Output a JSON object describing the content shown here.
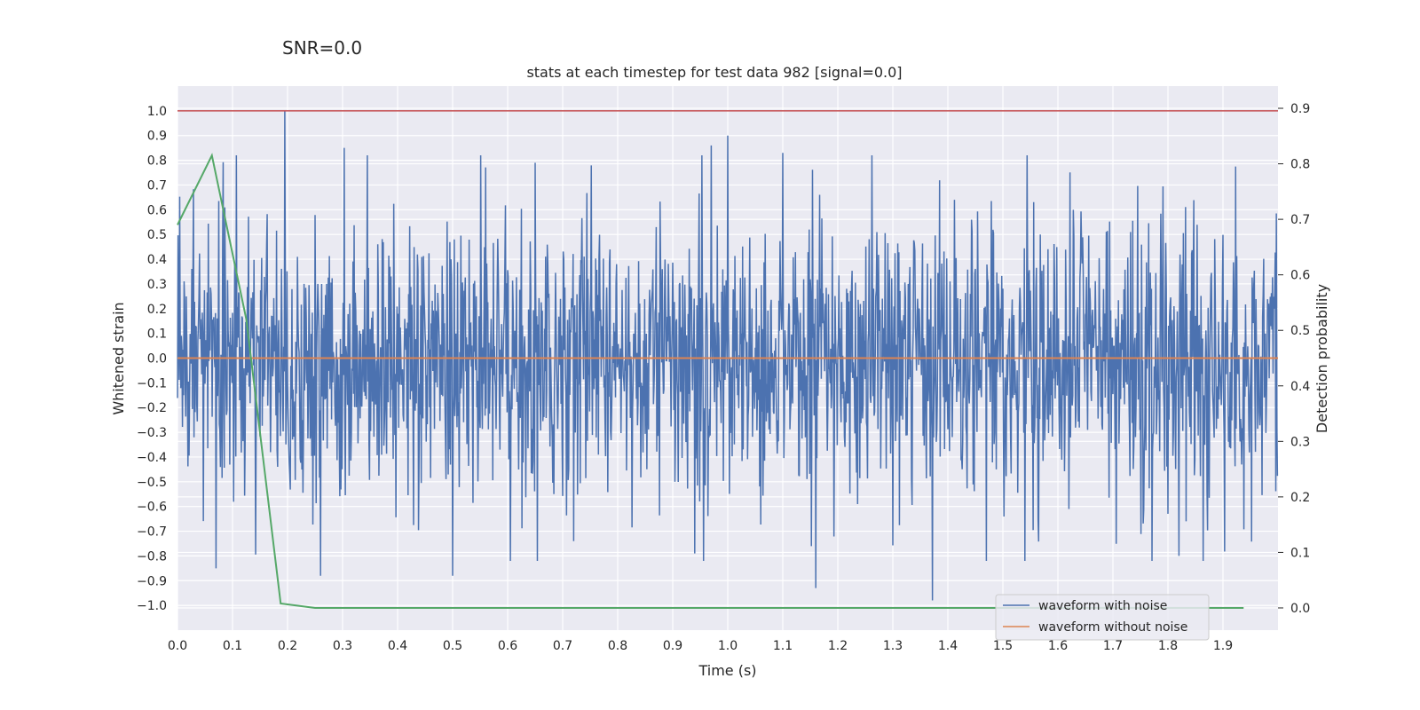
{
  "chart_data": {
    "type": "line",
    "suptitle": "SNR=0.0",
    "title": "stats at each timestep for test data 982 [signal=0.0]",
    "xlabel": "Time (s)",
    "ylabel": "Whitened strain",
    "ylabel_right": "Detection probability",
    "xlim": [
      0.0,
      2.0
    ],
    "ylim": [
      -1.1,
      1.1
    ],
    "ylim_right": [
      -0.04,
      0.94
    ],
    "xticks": [
      0.0,
      0.1,
      0.2,
      0.3,
      0.4,
      0.5,
      0.6,
      0.7,
      0.8,
      0.9,
      1.0,
      1.1,
      1.2,
      1.3,
      1.4,
      1.5,
      1.6,
      1.7,
      1.8,
      1.9
    ],
    "xtick_labels": [
      "0.0",
      "0.1",
      "0.2",
      "0.3",
      "0.4",
      "0.5",
      "0.6",
      "0.7",
      "0.8",
      "0.9",
      "1.0",
      "1.1",
      "1.2",
      "1.3",
      "1.4",
      "1.5",
      "1.6",
      "1.7",
      "1.8",
      "1.9"
    ],
    "yticks": [
      -1.0,
      -0.9,
      -0.8,
      -0.7,
      -0.6,
      -0.5,
      -0.4,
      -0.3,
      -0.2,
      -0.1,
      0.0,
      0.1,
      0.2,
      0.3,
      0.4,
      0.5,
      0.6,
      0.7,
      0.8,
      0.9,
      1.0
    ],
    "ytick_labels": [
      "−1.0",
      "−0.9",
      "−0.8",
      "−0.7",
      "−0.6",
      "−0.5",
      "−0.4",
      "−0.3",
      "−0.2",
      "−0.1",
      "0.0",
      "0.1",
      "0.2",
      "0.3",
      "0.4",
      "0.5",
      "0.6",
      "0.7",
      "0.8",
      "0.9",
      "1.0"
    ],
    "yticks_right": [
      0.0,
      0.1,
      0.2,
      0.3,
      0.4,
      0.5,
      0.6,
      0.7,
      0.8,
      0.9
    ],
    "ytick_labels_right": [
      "0.0",
      "0.1",
      "0.2",
      "0.3",
      "0.4",
      "0.5",
      "0.6",
      "0.7",
      "0.8",
      "0.9"
    ],
    "grid": true,
    "legend_position": "lower-right",
    "series": [
      {
        "name": "waveform with noise",
        "color": "#4c72b0",
        "axis": "left",
        "generated": true,
        "sample_rate": 1000,
        "duration": 2.0,
        "std": 0.28,
        "peaks": [
          {
            "x": 0.195,
            "y": 1.0
          },
          {
            "x": 1.372,
            "y": -0.98
          },
          {
            "x": 1.0,
            "y": 0.9
          },
          {
            "x": 0.303,
            "y": 0.85
          },
          {
            "x": 0.5,
            "y": -0.88
          },
          {
            "x": 1.16,
            "y": -0.93
          },
          {
            "x": 0.07,
            "y": -0.85
          },
          {
            "x": 0.94,
            "y": -0.79
          },
          {
            "x": 1.1,
            "y": 0.83
          },
          {
            "x": 0.65,
            "y": 0.79
          },
          {
            "x": 1.82,
            "y": -0.8
          },
          {
            "x": 0.72,
            "y": -0.74
          },
          {
            "x": 0.97,
            "y": 0.86
          },
          {
            "x": 0.26,
            "y": -0.88
          }
        ]
      },
      {
        "name": "waveform without noise",
        "color": "#dd8452",
        "axis": "left",
        "x": [
          0.0,
          2.0
        ],
        "y": [
          0.0,
          0.0
        ]
      },
      {
        "name": "Detection probability",
        "color": "#55a868",
        "axis": "right",
        "x": [
          0.0,
          0.0625,
          0.125,
          0.1875,
          0.25,
          1.375,
          1.9375
        ],
        "y": [
          0.69,
          0.815,
          0.52,
          0.008,
          0.0,
          0.0,
          0.0
        ]
      }
    ],
    "hline": {
      "y": 1.0,
      "color": "#c44e52"
    },
    "colors": {
      "background": "#eaeaf2",
      "grid": "#ffffff",
      "text": "#262626",
      "legend_bg": "#eaeaf2",
      "legend_border": "#cccccc"
    }
  }
}
